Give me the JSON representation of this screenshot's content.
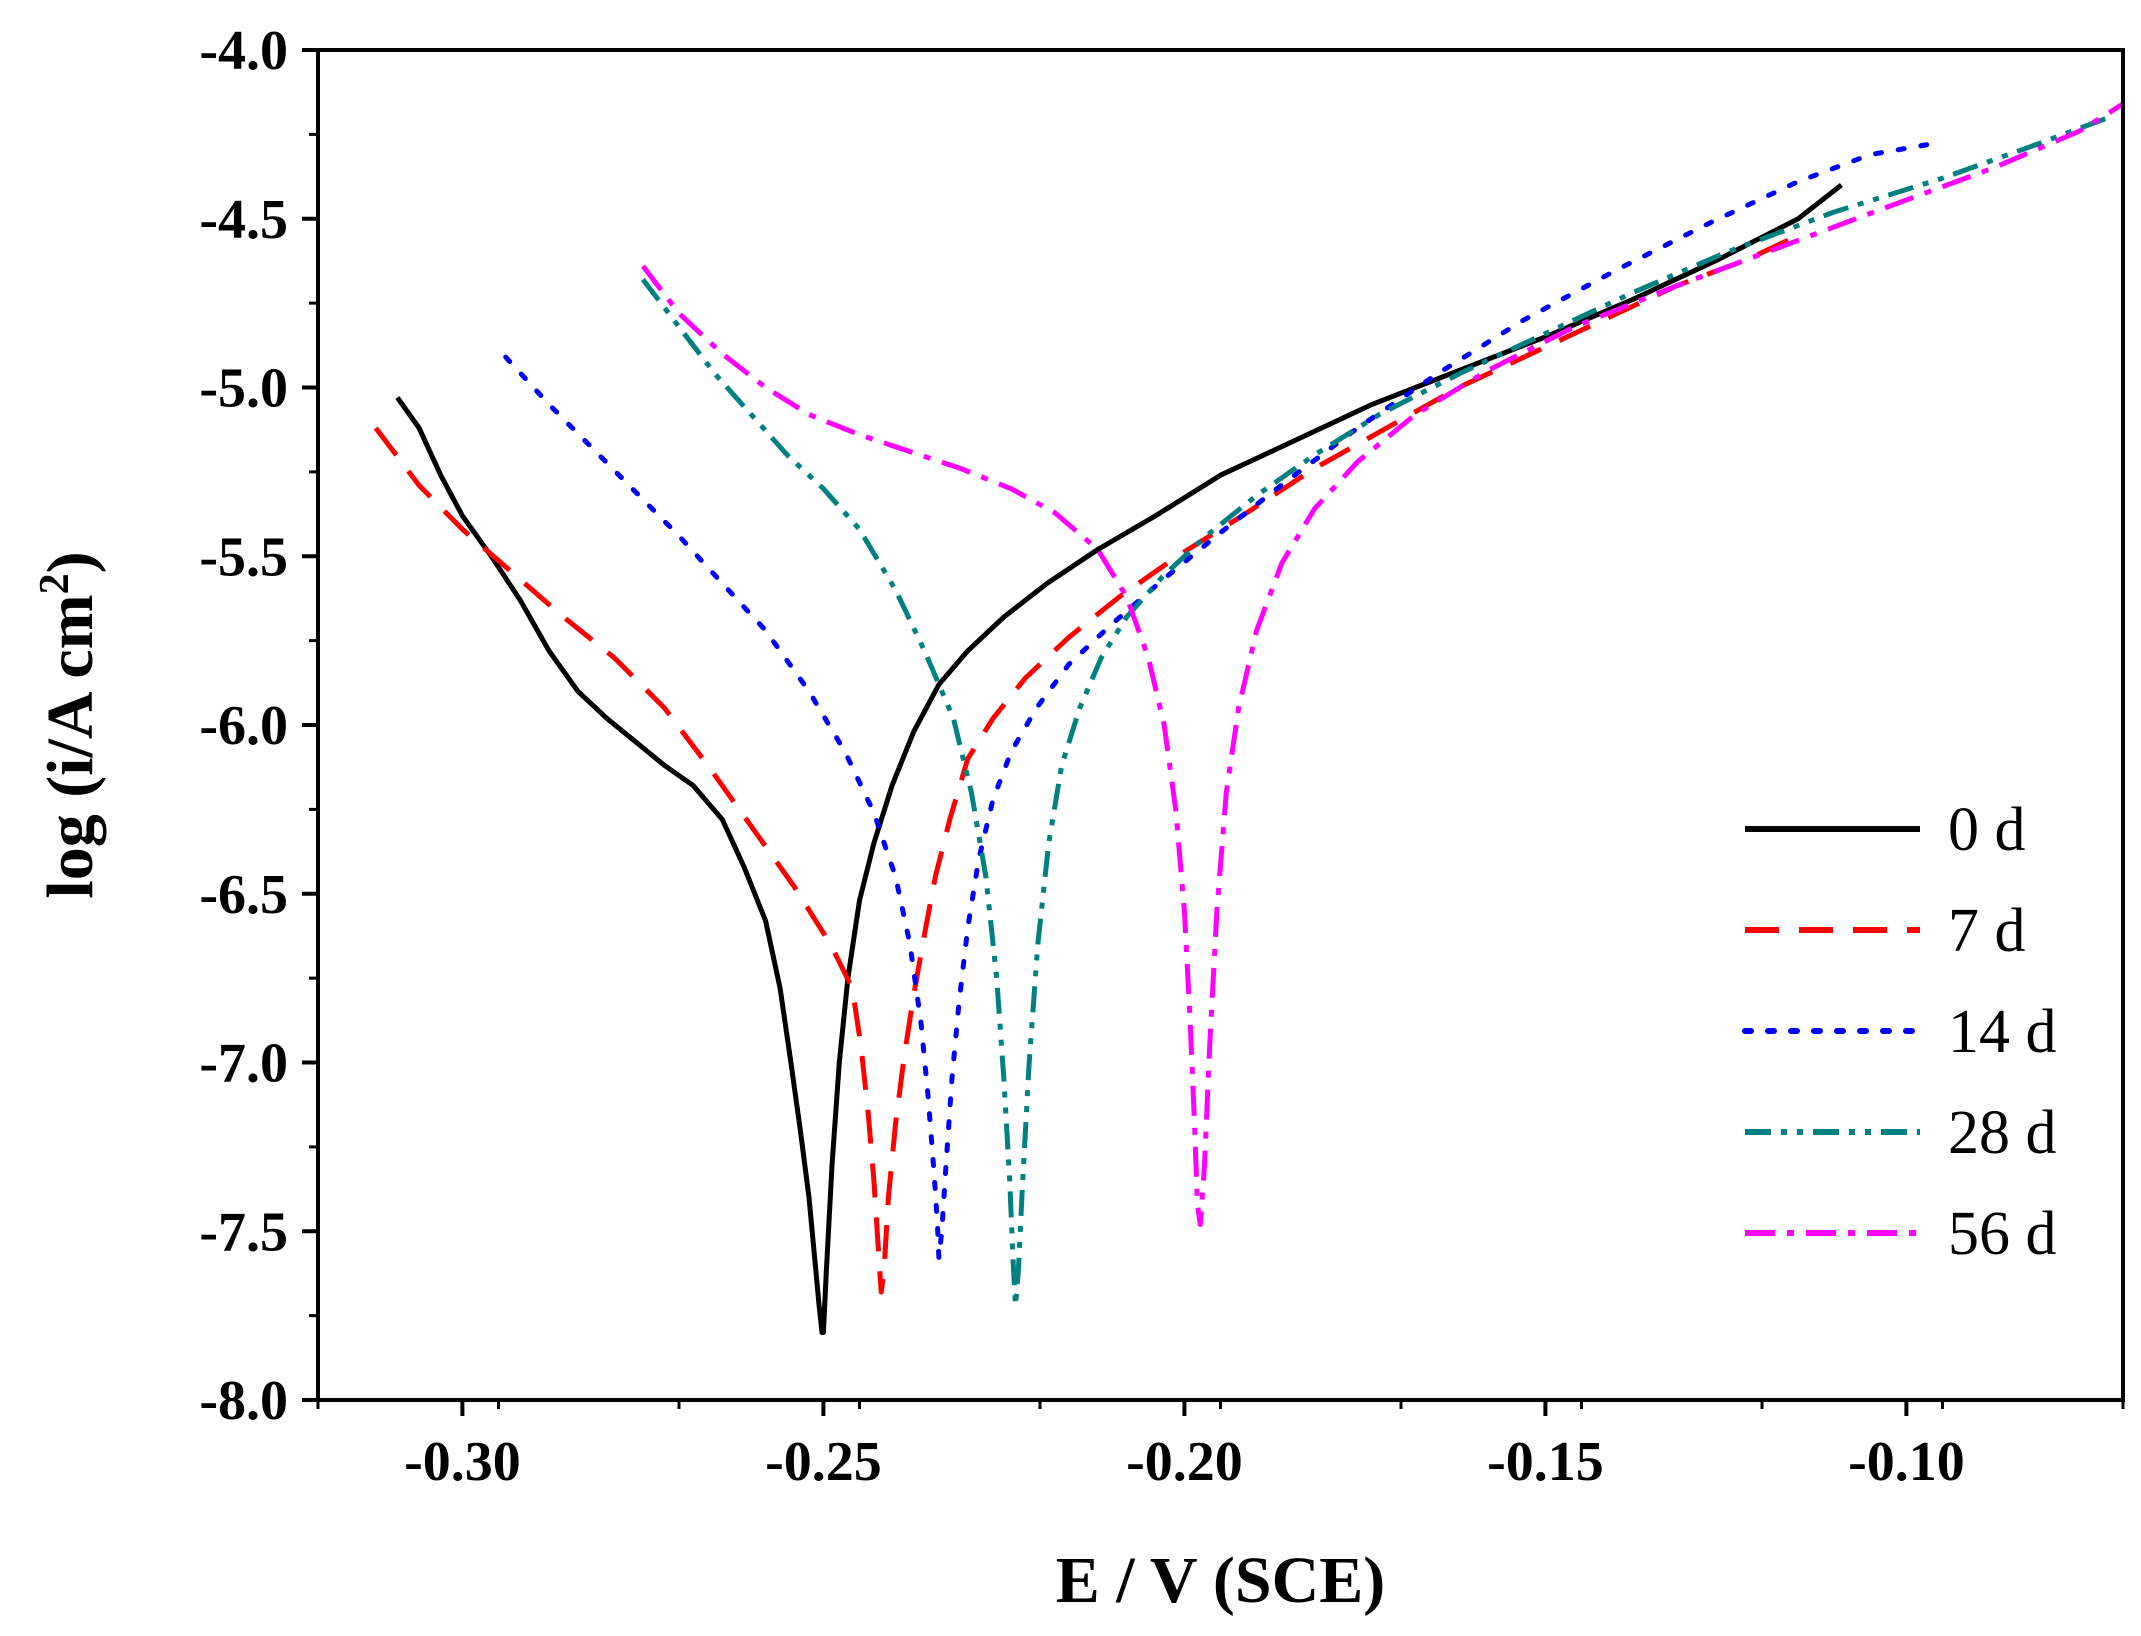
{
  "chart_data": {
    "type": "line",
    "xlabel": "E / V (SCE)",
    "ylabel_parts": [
      "log (i/A cm",
      "2",
      ")"
    ],
    "xlim": [
      -0.32,
      -0.07
    ],
    "ylim": [
      -8.0,
      -4.0
    ],
    "x_ticks": [
      -0.3,
      -0.25,
      -0.2,
      -0.15,
      -0.1
    ],
    "x_tick_labels": [
      "-0.30",
      "-0.25",
      "-0.20",
      "-0.15",
      "-0.10"
    ],
    "y_ticks": [
      -4.0,
      -4.5,
      -5.0,
      -5.5,
      -6.0,
      -6.5,
      -7.0,
      -7.5,
      -8.0
    ],
    "y_tick_labels": [
      "-4.0",
      "-4.5",
      "-5.0",
      "-5.5",
      "-6.0",
      "-6.5",
      "-7.0",
      "-7.5",
      "-8.0"
    ],
    "legend_position": "center-right",
    "series": [
      {
        "name": "0 d",
        "color": "#000000",
        "dash": "solid",
        "x": [
          -0.309,
          -0.306,
          -0.303,
          -0.3,
          -0.296,
          -0.292,
          -0.288,
          -0.284,
          -0.28,
          -0.276,
          -0.272,
          -0.268,
          -0.264,
          -0.261,
          -0.258,
          -0.256,
          -0.2545,
          -0.2532,
          -0.252,
          -0.2512,
          -0.2506,
          -0.2502,
          -0.25,
          -0.2496,
          -0.2488,
          -0.2478,
          -0.2466,
          -0.245,
          -0.243,
          -0.2405,
          -0.2375,
          -0.234,
          -0.23,
          -0.225,
          -0.219,
          -0.212,
          -0.204,
          -0.195,
          -0.185,
          -0.174,
          -0.162,
          -0.15,
          -0.138,
          -0.126,
          -0.115,
          -0.109
        ],
        "y": [
          -5.03,
          -5.12,
          -5.26,
          -5.38,
          -5.5,
          -5.63,
          -5.78,
          -5.9,
          -5.98,
          -6.05,
          -6.12,
          -6.18,
          -6.28,
          -6.42,
          -6.58,
          -6.78,
          -7.0,
          -7.2,
          -7.4,
          -7.58,
          -7.72,
          -7.8,
          -7.8,
          -7.62,
          -7.3,
          -7.0,
          -6.75,
          -6.52,
          -6.35,
          -6.18,
          -6.02,
          -5.88,
          -5.78,
          -5.68,
          -5.58,
          -5.48,
          -5.38,
          -5.26,
          -5.16,
          -5.05,
          -4.95,
          -4.85,
          -4.74,
          -4.62,
          -4.5,
          -4.4
        ]
      },
      {
        "name": "7 d",
        "color": "#ff0000",
        "dash": "dashed",
        "x": [
          -0.312,
          -0.306,
          -0.3,
          -0.293,
          -0.286,
          -0.279,
          -0.272,
          -0.266,
          -0.26,
          -0.254,
          -0.249,
          -0.246,
          -0.2448,
          -0.2438,
          -0.243,
          -0.2424,
          -0.242,
          -0.2416,
          -0.241,
          -0.24,
          -0.2388,
          -0.2375,
          -0.236,
          -0.2345,
          -0.2325,
          -0.23,
          -0.2265,
          -0.222,
          -0.216,
          -0.209,
          -0.201,
          -0.192,
          -0.182,
          -0.172,
          -0.162,
          -0.152,
          -0.142,
          -0.132,
          -0.122,
          -0.115
        ],
        "y": [
          -5.12,
          -5.29,
          -5.42,
          -5.55,
          -5.68,
          -5.8,
          -5.95,
          -6.12,
          -6.3,
          -6.48,
          -6.65,
          -6.78,
          -6.95,
          -7.15,
          -7.35,
          -7.55,
          -7.68,
          -7.62,
          -7.4,
          -7.18,
          -6.98,
          -6.8,
          -6.62,
          -6.45,
          -6.28,
          -6.1,
          -5.98,
          -5.86,
          -5.74,
          -5.62,
          -5.5,
          -5.38,
          -5.24,
          -5.12,
          -5.0,
          -4.9,
          -4.8,
          -4.7,
          -4.62,
          -4.55
        ]
      },
      {
        "name": "14 d",
        "color": "#0000ff",
        "dash": "dotted",
        "x": [
          -0.294,
          -0.288,
          -0.282,
          -0.276,
          -0.27,
          -0.264,
          -0.258,
          -0.252,
          -0.247,
          -0.243,
          -0.24,
          -0.238,
          -0.2365,
          -0.2355,
          -0.2347,
          -0.2342,
          -0.234,
          -0.2336,
          -0.233,
          -0.2322,
          -0.2312,
          -0.23,
          -0.2285,
          -0.2265,
          -0.224,
          -0.2205,
          -0.216,
          -0.21,
          -0.203,
          -0.195,
          -0.186,
          -0.176,
          -0.165,
          -0.153,
          -0.14,
          -0.127,
          -0.115,
          -0.105,
          -0.097
        ],
        "y": [
          -4.91,
          -5.05,
          -5.18,
          -5.31,
          -5.44,
          -5.58,
          -5.72,
          -5.9,
          -6.08,
          -6.26,
          -6.45,
          -6.65,
          -6.88,
          -7.1,
          -7.32,
          -7.48,
          -7.58,
          -7.5,
          -7.3,
          -7.05,
          -6.82,
          -6.6,
          -6.4,
          -6.22,
          -6.08,
          -5.95,
          -5.82,
          -5.7,
          -5.57,
          -5.43,
          -5.28,
          -5.12,
          -4.96,
          -4.8,
          -4.65,
          -4.51,
          -4.39,
          -4.31,
          -4.28
        ]
      },
      {
        "name": "28 d",
        "color": "#008080",
        "dash": "dash-dot-dot",
        "x": [
          -0.275,
          -0.27,
          -0.265,
          -0.26,
          -0.255,
          -0.25,
          -0.245,
          -0.24,
          -0.236,
          -0.232,
          -0.2295,
          -0.2275,
          -0.226,
          -0.225,
          -0.2242,
          -0.2237,
          -0.2234,
          -0.223,
          -0.2224,
          -0.2215,
          -0.2203,
          -0.2188,
          -0.217,
          -0.2145,
          -0.2115,
          -0.208,
          -0.203,
          -0.197,
          -0.19,
          -0.182,
          -0.173,
          -0.162,
          -0.15,
          -0.138,
          -0.125,
          -0.11,
          -0.095,
          -0.082,
          -0.072
        ],
        "y": [
          -4.68,
          -4.82,
          -4.96,
          -5.08,
          -5.2,
          -5.3,
          -5.42,
          -5.6,
          -5.78,
          -5.98,
          -6.2,
          -6.45,
          -6.75,
          -7.05,
          -7.35,
          -7.6,
          -7.72,
          -7.62,
          -7.35,
          -7.0,
          -6.65,
          -6.35,
          -6.12,
          -5.95,
          -5.8,
          -5.68,
          -5.56,
          -5.44,
          -5.32,
          -5.2,
          -5.08,
          -4.96,
          -4.84,
          -4.72,
          -4.6,
          -4.48,
          -4.38,
          -4.28,
          -4.2
        ]
      },
      {
        "name": "56 d",
        "color": "#ff00ff",
        "dash": "dash-dot",
        "x": [
          -0.275,
          -0.27,
          -0.264,
          -0.258,
          -0.252,
          -0.245,
          -0.238,
          -0.231,
          -0.224,
          -0.218,
          -0.212,
          -0.208,
          -0.205,
          -0.2028,
          -0.2012,
          -0.2,
          -0.1992,
          -0.1986,
          -0.1982,
          -0.1978,
          -0.1972,
          -0.1965,
          -0.1955,
          -0.1942,
          -0.1925,
          -0.19,
          -0.1865,
          -0.182,
          -0.176,
          -0.168,
          -0.158,
          -0.146,
          -0.132,
          -0.117,
          -0.102,
          -0.088,
          -0.076,
          -0.07
        ],
        "y": [
          -4.64,
          -4.78,
          -4.9,
          -5.0,
          -5.08,
          -5.14,
          -5.19,
          -5.24,
          -5.3,
          -5.37,
          -5.48,
          -5.62,
          -5.8,
          -6.0,
          -6.25,
          -6.55,
          -6.88,
          -7.18,
          -7.42,
          -7.48,
          -7.3,
          -6.95,
          -6.55,
          -6.2,
          -5.95,
          -5.72,
          -5.52,
          -5.36,
          -5.22,
          -5.08,
          -4.95,
          -4.82,
          -4.7,
          -4.58,
          -4.46,
          -4.35,
          -4.24,
          -4.16
        ]
      }
    ]
  }
}
